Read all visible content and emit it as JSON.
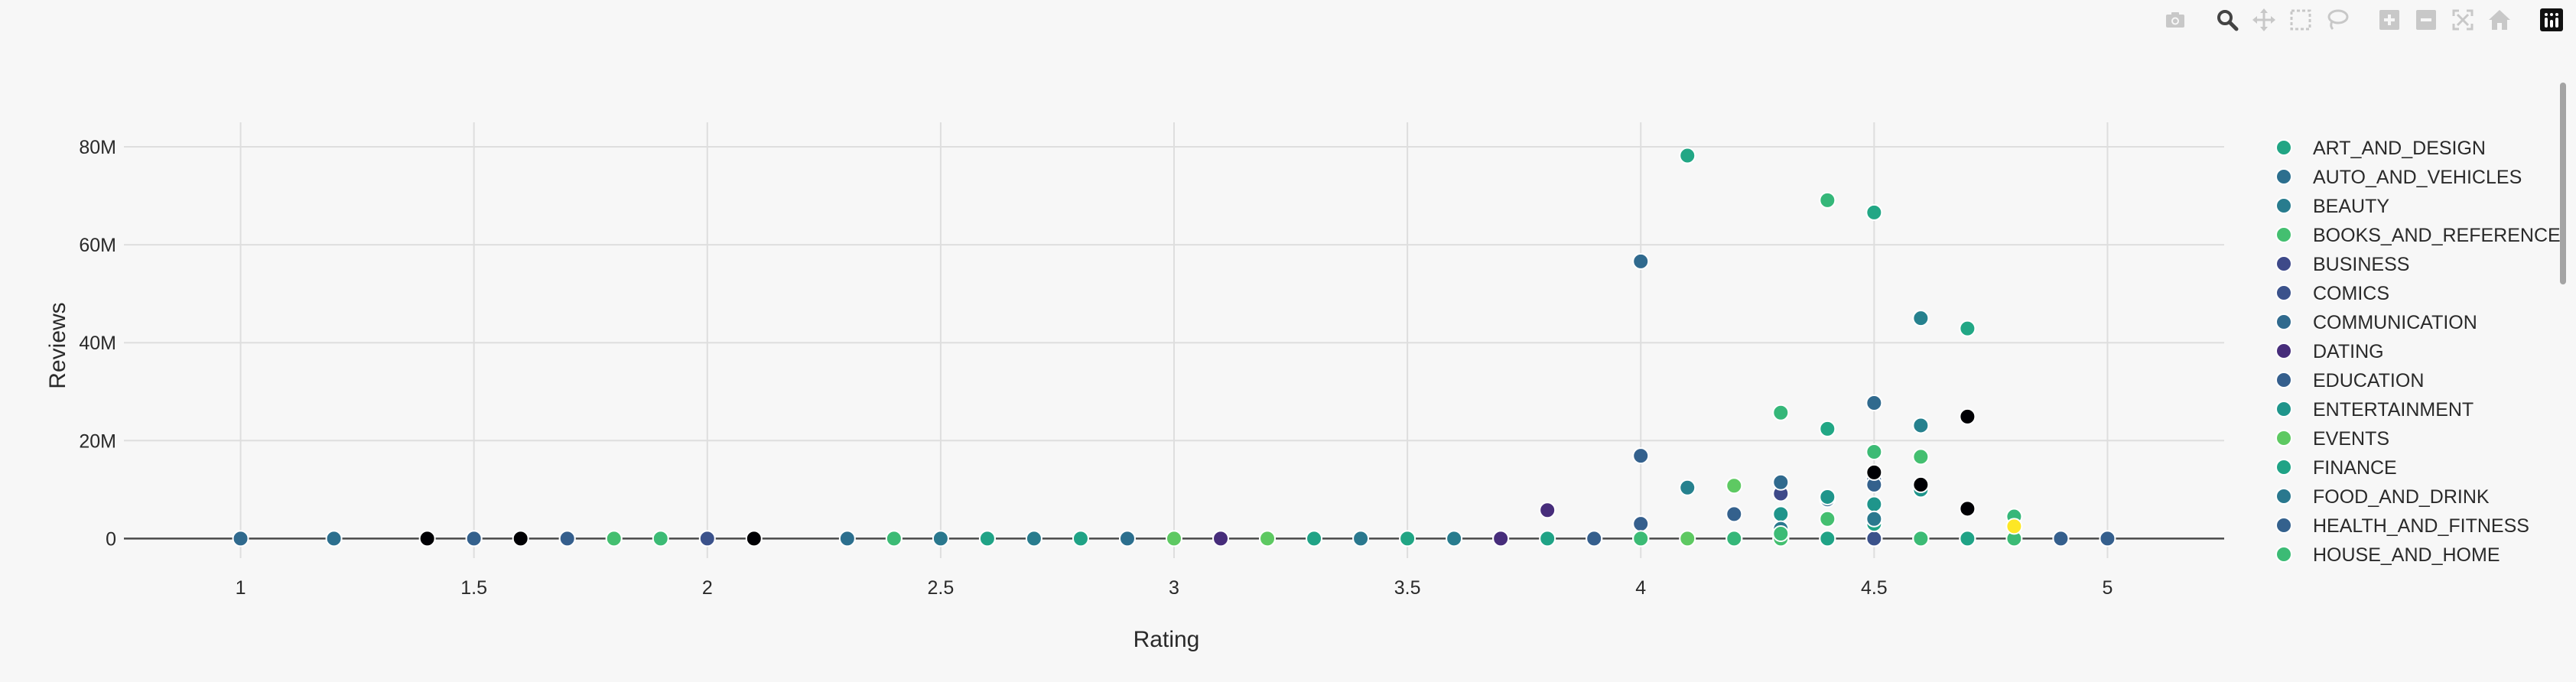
{
  "chart_data": {
    "type": "scatter",
    "title": "",
    "xlabel": "Rating",
    "ylabel": "Reviews",
    "xlim": [
      0.75,
      5.25
    ],
    "ylim": [
      -4000000,
      85000000
    ],
    "x_ticks": [
      {
        "value": 1,
        "label": "1"
      },
      {
        "value": 1.5,
        "label": "1.5"
      },
      {
        "value": 2,
        "label": "2"
      },
      {
        "value": 2.5,
        "label": "2.5"
      },
      {
        "value": 3,
        "label": "3"
      },
      {
        "value": 3.5,
        "label": "3.5"
      },
      {
        "value": 4,
        "label": "4"
      },
      {
        "value": 4.5,
        "label": "4.5"
      },
      {
        "value": 5,
        "label": "5"
      }
    ],
    "y_ticks": [
      {
        "value": 0,
        "label": "0"
      },
      {
        "value": 20000000,
        "label": "20M"
      },
      {
        "value": 40000000,
        "label": "40M"
      },
      {
        "value": 60000000,
        "label": "60M"
      },
      {
        "value": 80000000,
        "label": "80M"
      }
    ],
    "grid": true,
    "legend_position": "right",
    "series": [
      {
        "name": "ART_AND_DESIGN",
        "color": "#21a584",
        "points": [
          [
            1.8,
            0
          ],
          [
            2.4,
            0
          ],
          [
            2.6,
            0
          ],
          [
            3.5,
            0
          ],
          [
            4.0,
            0
          ],
          [
            4.3,
            0
          ],
          [
            4.5,
            0
          ],
          [
            4.7,
            0
          ]
        ]
      },
      {
        "name": "AUTO_AND_VEHICLES",
        "color": "#2c6f8e",
        "points": [
          [
            1.2,
            0
          ],
          [
            1.7,
            0
          ],
          [
            2.3,
            0
          ],
          [
            2.9,
            0
          ],
          [
            4.2,
            0
          ],
          [
            4.5,
            0
          ]
        ]
      },
      {
        "name": "BEAUTY",
        "color": "#287c8e",
        "points": [
          [
            2.7,
            0
          ],
          [
            3.2,
            0
          ],
          [
            3.6,
            0
          ],
          [
            3.9,
            0
          ],
          [
            4.3,
            0
          ],
          [
            4.6,
            0
          ]
        ]
      },
      {
        "name": "BOOKS_AND_REFERENCE",
        "color": "#44bf70",
        "points": [
          [
            1.8,
            0
          ],
          [
            3.2,
            0
          ],
          [
            4.2,
            0
          ],
          [
            4.3,
            0
          ],
          [
            4.4,
            4000000
          ],
          [
            4.5,
            0
          ],
          [
            4.6,
            16700000
          ],
          [
            4.7,
            0
          ]
        ]
      },
      {
        "name": "BUSINESS",
        "color": "#3e4989",
        "points": [
          [
            3.7,
            0
          ],
          [
            4.3,
            9200000
          ],
          [
            4.4,
            0
          ],
          [
            4.6,
            0
          ]
        ]
      },
      {
        "name": "COMICS",
        "color": "#3b528b",
        "points": [
          [
            2.0,
            0
          ],
          [
            3.9,
            0
          ],
          [
            4.5,
            0
          ],
          [
            4.9,
            0
          ]
        ]
      },
      {
        "name": "COMMUNICATION",
        "color": "#306a8e",
        "points": [
          [
            1.0,
            0
          ],
          [
            1.5,
            0
          ],
          [
            4.0,
            56600000
          ],
          [
            4.3,
            11500000
          ],
          [
            4.4,
            8000000
          ],
          [
            4.5,
            27700000
          ],
          [
            4.6,
            0
          ]
        ]
      },
      {
        "name": "DATING",
        "color": "#472d7b",
        "points": [
          [
            3.1,
            0
          ],
          [
            3.7,
            0
          ],
          [
            3.8,
            5800000
          ],
          [
            4.6,
            0
          ]
        ]
      },
      {
        "name": "EDUCATION",
        "color": "#355f8d",
        "points": [
          [
            1.7,
            0
          ],
          [
            3.9,
            0
          ],
          [
            4.0,
            3000000
          ],
          [
            4.5,
            12000000
          ],
          [
            4.9,
            0
          ],
          [
            5.0,
            0
          ]
        ]
      },
      {
        "name": "ENTERTAINMENT",
        "color": "#1f958b",
        "points": [
          [
            4.0,
            0
          ],
          [
            4.3,
            5000000
          ],
          [
            4.4,
            8500000
          ],
          [
            4.5,
            7000000
          ],
          [
            4.6,
            10000000
          ]
        ]
      },
      {
        "name": "EVENTS",
        "color": "#5ec962",
        "points": [
          [
            3.0,
            0
          ],
          [
            3.2,
            0
          ],
          [
            4.1,
            0
          ],
          [
            4.2,
            10800000
          ],
          [
            4.7,
            0
          ]
        ]
      },
      {
        "name": "FINANCE",
        "color": "#20a386",
        "points": [
          [
            2.6,
            0
          ],
          [
            2.8,
            0
          ],
          [
            3.3,
            0
          ],
          [
            3.8,
            0
          ],
          [
            4.0,
            0
          ],
          [
            4.4,
            0
          ],
          [
            4.5,
            3000000
          ],
          [
            4.7,
            0
          ]
        ]
      },
      {
        "name": "FOOD_AND_DRINK",
        "color": "#2a788e",
        "points": [
          [
            2.5,
            0
          ],
          [
            3.4,
            0
          ],
          [
            4.0,
            0
          ],
          [
            4.3,
            2000000
          ],
          [
            4.5,
            4000000
          ],
          [
            4.6,
            0
          ]
        ]
      },
      {
        "name": "HEALTH_AND_FITNESS",
        "color": "#34618d",
        "points": [
          [
            1.5,
            0
          ],
          [
            4.0,
            16900000
          ],
          [
            4.2,
            5000000
          ],
          [
            4.5,
            11000000
          ],
          [
            4.6,
            0
          ]
        ]
      },
      {
        "name": "HOUSE_AND_HOME",
        "color": "#3cbb75",
        "points": [
          [
            1.9,
            0
          ],
          [
            2.4,
            0
          ],
          [
            4.0,
            0
          ],
          [
            4.3,
            1000000
          ],
          [
            4.5,
            17700000
          ],
          [
            4.6,
            0
          ],
          [
            4.8,
            0
          ]
        ]
      },
      {
        "name": "",
        "color": "#000004",
        "points": [
          [
            1.4,
            0
          ],
          [
            1.6,
            0
          ],
          [
            2.1,
            0
          ],
          [
            4.5,
            13500000
          ],
          [
            4.6,
            11000000
          ],
          [
            4.7,
            24900000
          ],
          [
            4.7,
            6100000
          ]
        ]
      },
      {
        "name": "",
        "color": "#22a785",
        "points": [
          [
            4.1,
            78200000
          ],
          [
            4.4,
            22400000
          ],
          [
            4.5,
            66600000
          ],
          [
            4.6,
            45000000
          ],
          [
            4.7,
            42900000
          ]
        ]
      },
      {
        "name": "",
        "color": "#35b779",
        "points": [
          [
            4.4,
            69100000
          ],
          [
            4.3,
            25700000
          ],
          [
            4.8,
            4500000
          ],
          [
            4.2,
            0
          ]
        ]
      },
      {
        "name": "",
        "color": "#26818e",
        "points": [
          [
            4.1,
            10400000
          ],
          [
            4.6,
            23100000
          ],
          [
            4.6,
            45000000
          ]
        ]
      },
      {
        "name": "",
        "color": "#fde725",
        "points": [
          [
            4.8,
            2500000
          ]
        ]
      }
    ]
  },
  "modebar": {
    "buttons": [
      {
        "icon": "camera-icon",
        "name": "download-plot-button"
      },
      {
        "icon": "zoom-icon",
        "name": "zoom-button"
      },
      {
        "icon": "pan-icon",
        "name": "pan-button"
      },
      {
        "icon": "box-select-icon",
        "name": "box-select-button"
      },
      {
        "icon": "lasso-select-icon",
        "name": "lasso-select-button"
      },
      {
        "icon": "zoom-in-icon",
        "name": "zoom-in-button"
      },
      {
        "icon": "zoom-out-icon",
        "name": "zoom-out-button"
      },
      {
        "icon": "autoscale-icon",
        "name": "autoscale-button"
      },
      {
        "icon": "home-icon",
        "name": "reset-axes-button"
      },
      {
        "icon": "plotly-logo-icon",
        "name": "plotly-logo-button"
      }
    ]
  }
}
